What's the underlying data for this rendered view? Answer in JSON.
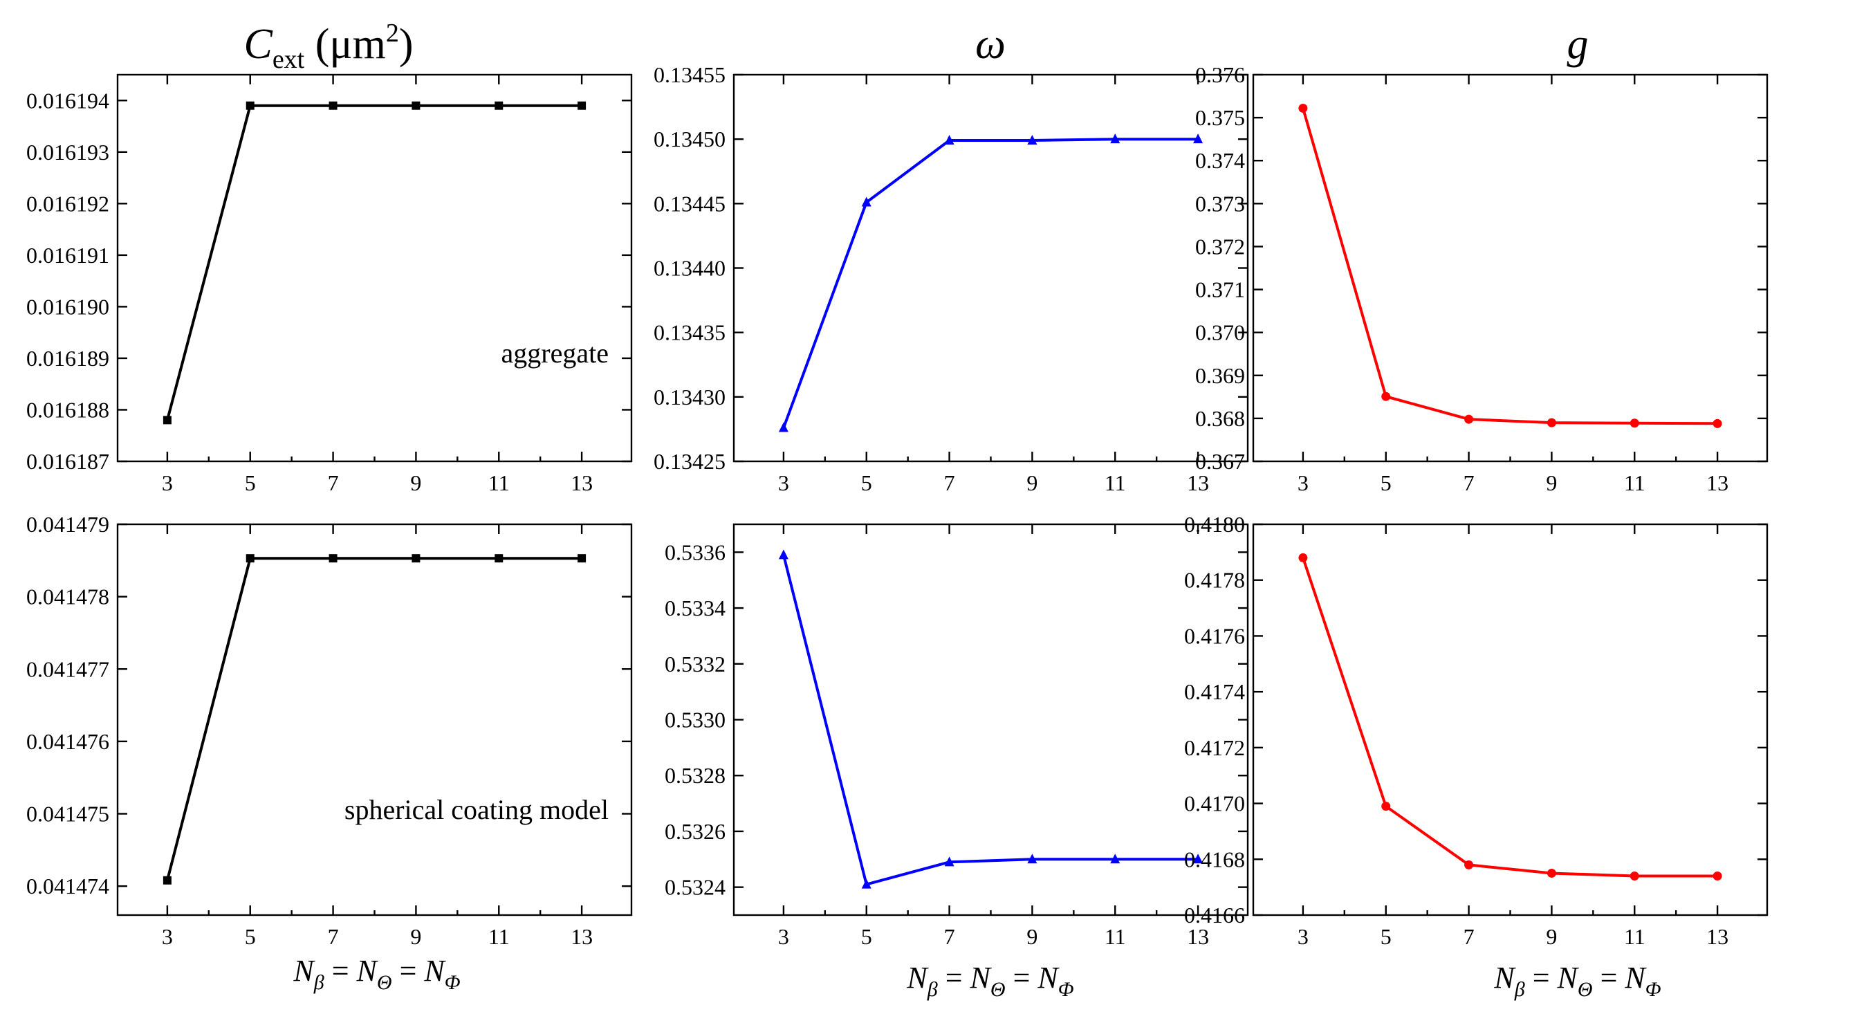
{
  "column_titles": [
    {
      "main": "C",
      "sub": "ext",
      "unit": " (μm",
      "sup": "2",
      "close": ")"
    },
    {
      "main": "ω"
    },
    {
      "main": "g"
    }
  ],
  "x_axis_label": {
    "n1": "N",
    "s1": "β",
    "eq1": " = ",
    "n2": "N",
    "s2": "Θ",
    "eq2": " = ",
    "n3": "N",
    "s3": "Φ"
  },
  "chart_data": [
    {
      "type": "line",
      "panel": "top-left",
      "color": "#000000",
      "marker": "square",
      "x": [
        3,
        5,
        7,
        9,
        11,
        13
      ],
      "xticks": [
        "3",
        "5",
        "7",
        "9",
        "11",
        "13"
      ],
      "series": [
        {
          "values": [
            0.0161878,
            0.0161939,
            0.0161939,
            0.0161939,
            0.0161939,
            0.0161939
          ]
        }
      ],
      "ylim": [
        0.016187,
        0.0161945
      ],
      "yticks": [
        "0.016187",
        "0.016188",
        "0.016189",
        "0.016190",
        "0.016191",
        "0.016192",
        "0.016193",
        "0.016194"
      ],
      "ytick_values": [
        0.016187,
        0.016188,
        0.016189,
        0.01619,
        0.016191,
        0.016192,
        0.016193,
        0.016194
      ],
      "annotation": "aggregate"
    },
    {
      "type": "line",
      "panel": "top-middle",
      "color": "#0000ff",
      "marker": "triangle",
      "x": [
        3,
        5,
        7,
        9,
        11,
        13
      ],
      "xticks": [
        "3",
        "5",
        "7",
        "9",
        "11",
        "13"
      ],
      "series": [
        {
          "values": [
            0.134276,
            0.134451,
            0.134499,
            0.134499,
            0.1345,
            0.1345
          ]
        }
      ],
      "ylim": [
        0.13425,
        0.13455
      ],
      "yticks": [
        "0.13425",
        "0.13430",
        "0.13435",
        "0.13440",
        "0.13445",
        "0.13450",
        "0.13455"
      ],
      "ytick_values": [
        0.13425,
        0.1343,
        0.13435,
        0.1344,
        0.13445,
        0.1345,
        0.13455
      ]
    },
    {
      "type": "line",
      "panel": "top-right",
      "color": "#ff0000",
      "marker": "circle",
      "x": [
        3,
        5,
        7,
        9,
        11,
        13
      ],
      "xticks": [
        "3",
        "5",
        "7",
        "9",
        "11",
        "13"
      ],
      "series": [
        {
          "values": [
            0.37522,
            0.36851,
            0.36798,
            0.3679,
            0.36789,
            0.36788
          ]
        }
      ],
      "ylim": [
        0.367,
        0.376
      ],
      "yticks": [
        "0.367",
        "0.368",
        "0.369",
        "0.370",
        "0.371",
        "0.372",
        "0.373",
        "0.374",
        "0.375",
        "0.376"
      ],
      "ytick_values": [
        0.367,
        0.368,
        0.369,
        0.37,
        0.371,
        0.372,
        0.373,
        0.374,
        0.375,
        0.376
      ]
    },
    {
      "type": "line",
      "panel": "bottom-left",
      "color": "#000000",
      "marker": "square",
      "x": [
        3,
        5,
        7,
        9,
        11,
        13
      ],
      "xticks": [
        "3",
        "5",
        "7",
        "9",
        "11",
        "13"
      ],
      "series": [
        {
          "values": [
            0.04147408,
            0.04147853,
            0.04147853,
            0.04147853,
            0.04147853,
            0.04147853
          ]
        }
      ],
      "ylim": [
        0.0414736,
        0.041479
      ],
      "yticks": [
        "0.041474",
        "0.041475",
        "0.041476",
        "0.041477",
        "0.041478",
        "0.041479"
      ],
      "ytick_values": [
        0.041474,
        0.041475,
        0.041476,
        0.041477,
        0.041478,
        0.041479
      ],
      "annotation": "spherical coating model"
    },
    {
      "type": "line",
      "panel": "bottom-middle",
      "color": "#0000ff",
      "marker": "triangle",
      "x": [
        3,
        5,
        7,
        9,
        11,
        13
      ],
      "xticks": [
        "3",
        "5",
        "7",
        "9",
        "11",
        "13"
      ],
      "series": [
        {
          "values": [
            0.53359,
            0.53241,
            0.53249,
            0.5325,
            0.5325,
            0.5325
          ]
        }
      ],
      "ylim": [
        0.5323,
        0.5337
      ],
      "yticks": [
        "0.5324",
        "0.5326",
        "0.5328",
        "0.5330",
        "0.5332",
        "0.5334",
        "0.5336"
      ],
      "ytick_values": [
        0.5324,
        0.5326,
        0.5328,
        0.533,
        0.5332,
        0.5334,
        0.5336
      ]
    },
    {
      "type": "line",
      "panel": "bottom-right",
      "color": "#ff0000",
      "marker": "circle",
      "x": [
        3,
        5,
        7,
        9,
        11,
        13
      ],
      "xticks": [
        "3",
        "5",
        "7",
        "9",
        "11",
        "13"
      ],
      "series": [
        {
          "values": [
            0.41788,
            0.41699,
            0.41678,
            0.41675,
            0.41674,
            0.41674
          ]
        }
      ],
      "ylim": [
        0.4166,
        0.418
      ],
      "yticks": [
        "0.4166",
        "0.4168",
        "0.4170",
        "0.4172",
        "0.4174",
        "0.4176",
        "0.4178",
        "0.4180"
      ],
      "ytick_values": [
        0.4166,
        0.4168,
        0.417,
        0.4172,
        0.4174,
        0.4176,
        0.4178,
        0.418
      ]
    }
  ]
}
